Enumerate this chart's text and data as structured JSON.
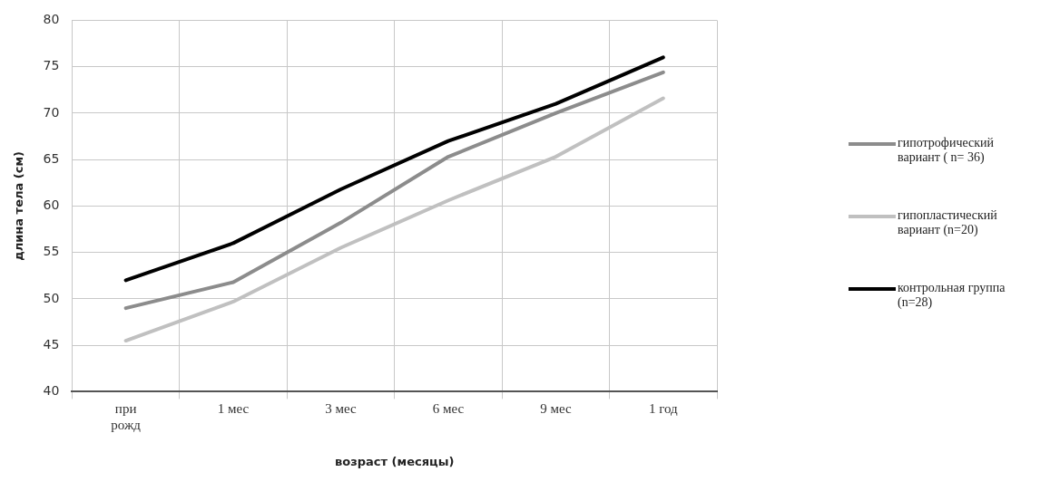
{
  "chart_data": {
    "type": "line",
    "xlabel": "возраст (месяцы)",
    "ylabel": "длина тела (см)",
    "categories": [
      "при рожд",
      "1 мес",
      "3 мес",
      "6 мес",
      "9 мес",
      "1 год"
    ],
    "series": [
      {
        "name": "гипотрофический вариант ( n= 36)",
        "color": "#8c8c8c",
        "values": [
          49,
          51.8,
          58.2,
          65.3,
          70,
          74.4
        ]
      },
      {
        "name": "гипопластический вариант (n=20)",
        "color": "#c0c0c0",
        "values": [
          45.5,
          49.7,
          55.5,
          60.6,
          65.3,
          71.6
        ]
      },
      {
        "name": "контрольная группа (n=28)",
        "color": "#000000",
        "values": [
          52,
          56,
          61.8,
          67,
          71,
          76
        ]
      }
    ],
    "ylim": [
      40,
      80
    ],
    "yticks": [
      40,
      45,
      50,
      55,
      60,
      65,
      70,
      75,
      80
    ],
    "grid": true,
    "legend": "right",
    "marker": "none",
    "line_style": "solid"
  }
}
